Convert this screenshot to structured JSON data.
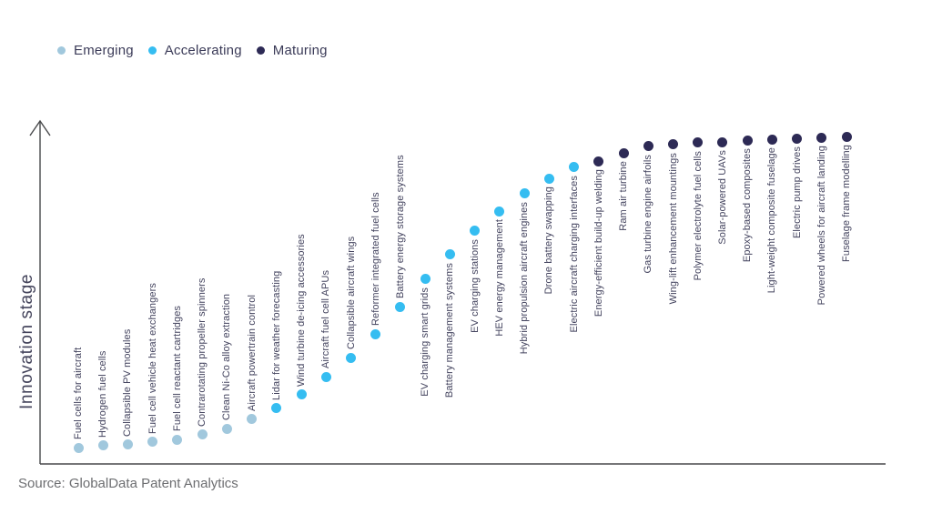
{
  "legend": {
    "items": [
      {
        "label": "Emerging",
        "stage": "Emerging"
      },
      {
        "label": "Accelerating",
        "stage": "Accelerating"
      },
      {
        "label": "Maturing",
        "stage": "Maturing"
      }
    ]
  },
  "axis": {
    "y_label": "Innovation stage"
  },
  "source": "Source: GlobalData Patent Analytics",
  "chart_data": {
    "type": "scatter",
    "title": "",
    "xlabel": "",
    "ylabel": "Innovation stage",
    "ylim": [
      0,
      100
    ],
    "grid": false,
    "legend_position": "top-left",
    "stage_colors": {
      "Emerging": "#a1c8dd",
      "Accelerating": "#35bdf1",
      "Maturing": "#2d2a55"
    },
    "items": [
      {
        "label": "Fuel cells for aircraft",
        "stage": "Emerging",
        "value": 0
      },
      {
        "label": "Hydrogen fuel cells",
        "stage": "Emerging",
        "value": 0.6
      },
      {
        "label": "Collapsible PV modules",
        "stage": "Emerging",
        "value": 0.9
      },
      {
        "label": "Fuel cell vehicle heat exchangers",
        "stage": "Emerging",
        "value": 1.8
      },
      {
        "label": "Fuel cell reactant cartridges",
        "stage": "Emerging",
        "value": 2.6
      },
      {
        "label": "Contrarotating propeller spinners",
        "stage": "Emerging",
        "value": 4.1
      },
      {
        "label": "Clean Ni-Co alloy extraction",
        "stage": "Emerging",
        "value": 6.1
      },
      {
        "label": "Aircraft powertrain control",
        "stage": "Emerging",
        "value": 9.1
      },
      {
        "label": "Lidar for weather forecasting",
        "stage": "Accelerating",
        "value": 12.6
      },
      {
        "label": "Wind turbine de-icing accessories",
        "stage": "Accelerating",
        "value": 17.0
      },
      {
        "label": "Aircraft fuel cell APUs",
        "stage": "Accelerating",
        "value": 22.8
      },
      {
        "label": "Collapsible aircraft wings",
        "stage": "Accelerating",
        "value": 28.9
      },
      {
        "label": "Reformer integrated fuel cells",
        "stage": "Accelerating",
        "value": 36.5
      },
      {
        "label": "Battery energy storage systems",
        "stage": "Accelerating",
        "value": 45.3
      },
      {
        "label": "EV charging smart grids",
        "stage": "Accelerating",
        "value": 54.1
      },
      {
        "label": "Battery management systems",
        "stage": "Accelerating",
        "value": 62.0
      },
      {
        "label": "EV charging stations",
        "stage": "Accelerating",
        "value": 69.6
      },
      {
        "label": "HEV energy management",
        "stage": "Accelerating",
        "value": 76.0
      },
      {
        "label": "Hybrid propulsion aircraft engines",
        "stage": "Accelerating",
        "value": 81.6
      },
      {
        "label": "Drone battery swapping",
        "stage": "Accelerating",
        "value": 86.5
      },
      {
        "label": "Electric aircraft charging interfaces",
        "stage": "Accelerating",
        "value": 90.1
      },
      {
        "label": "Energy-efficient build-up welding",
        "stage": "Maturing",
        "value": 92.1
      },
      {
        "label": "Ram air turbine",
        "stage": "Maturing",
        "value": 94.7
      },
      {
        "label": "Gas turbine engine airfoils",
        "stage": "Maturing",
        "value": 96.8
      },
      {
        "label": "Wing-lift enhancement mountings",
        "stage": "Maturing",
        "value": 97.4
      },
      {
        "label": "Polymer electrolyte fuel cells",
        "stage": "Maturing",
        "value": 98.0
      },
      {
        "label": "Solar-powered UAVs",
        "stage": "Maturing",
        "value": 98.2
      },
      {
        "label": "Epoxy-based composites",
        "stage": "Maturing",
        "value": 98.8
      },
      {
        "label": "Light-weight composite fuselage",
        "stage": "Maturing",
        "value": 99.1
      },
      {
        "label": "Electric pump drives",
        "stage": "Maturing",
        "value": 99.4
      },
      {
        "label": "Powered wheels for aircraft landing",
        "stage": "Maturing",
        "value": 99.7
      },
      {
        "label": "Fuselage frame modelling",
        "stage": "Maturing",
        "value": 100
      }
    ]
  }
}
